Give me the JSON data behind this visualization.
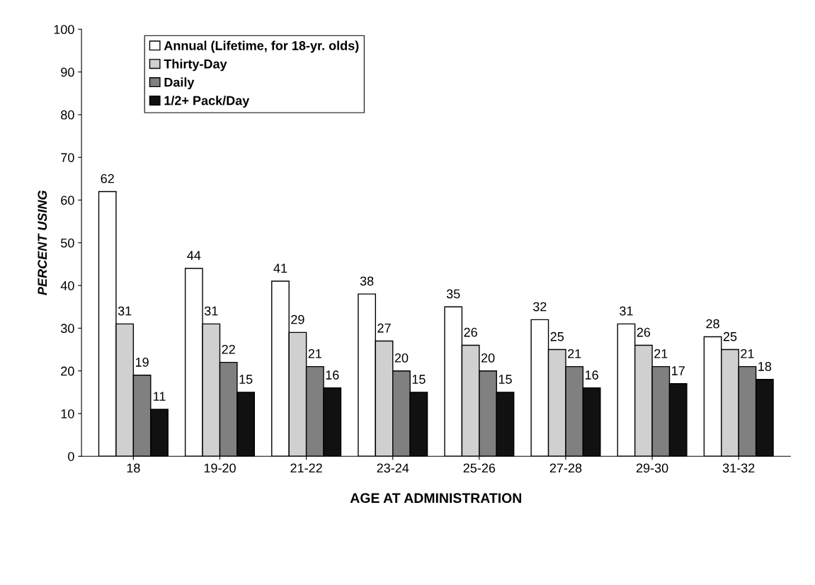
{
  "chart_data": {
    "type": "bar",
    "xlabel": "AGE AT ADMINISTRATION",
    "ylabel": "PERCENT USING",
    "categories": [
      "18",
      "19-20",
      "21-22",
      "23-24",
      "25-26",
      "27-28",
      "29-30",
      "31-32"
    ],
    "series": [
      {
        "name": "Annual (Lifetime, for 18-yr. olds)",
        "color": "#ffffff",
        "values": [
          62,
          44,
          41,
          38,
          35,
          32,
          31,
          28
        ]
      },
      {
        "name": "Thirty-Day",
        "color": "#d0d0d0",
        "values": [
          31,
          31,
          29,
          27,
          26,
          25,
          26,
          25
        ]
      },
      {
        "name": "Daily",
        "color": "#808080",
        "values": [
          19,
          22,
          21,
          20,
          20,
          21,
          21,
          21
        ]
      },
      {
        "name": "1/2+ Pack/Day",
        "color": "#111111",
        "values": [
          11,
          15,
          16,
          15,
          15,
          16,
          17,
          18
        ]
      }
    ],
    "ylim": [
      0,
      100
    ],
    "yticks": [
      0,
      10,
      20,
      30,
      40,
      50,
      60,
      70,
      80,
      90,
      100
    ],
    "data_labels": true,
    "legend": "top left",
    "grid": false
  }
}
